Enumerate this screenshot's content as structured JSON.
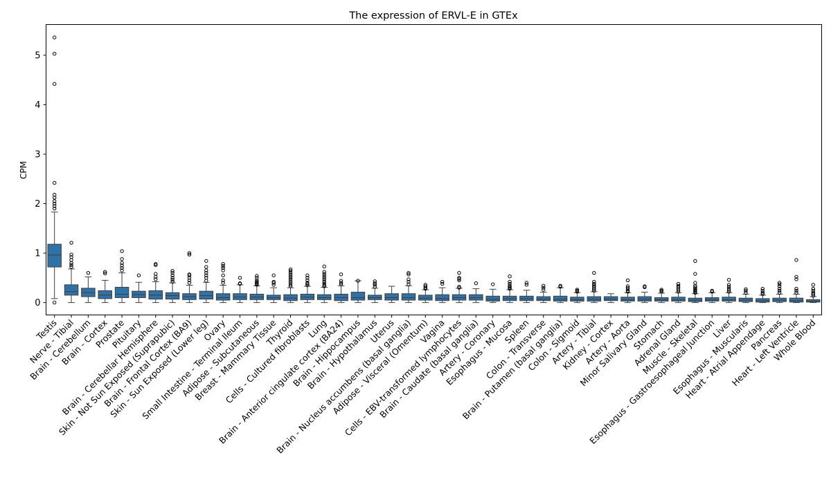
{
  "chart_data": {
    "type": "box",
    "title": "The expression of ERVL-E in GTEx",
    "xlabel": "",
    "ylabel": "CPM",
    "ylim": [
      -0.25,
      5.62
    ],
    "yticks": [
      0,
      1,
      2,
      3,
      4,
      5
    ],
    "grid": false,
    "legend": "none",
    "box_color": "#2E72A8",
    "categories": [
      "Testis",
      "Nerve - Tibial",
      "Brain - Cerebellum",
      "Brain - Cortex",
      "Prostate",
      "Pituitary",
      "Brain - Cerebellar Hemisphere",
      "Skin - Not Sun Exposed (Suprapubic)",
      "Brain - Frontal Cortex (BA9)",
      "Skin - Sun Exposed (Lower leg)",
      "Ovary",
      "Small Intestine - Terminal Ileum",
      "Adipose - Subcutaneous",
      "Breast - Mammary Tissue",
      "Thyroid",
      "Cells - Cultured fibroblasts",
      "Lung",
      "Brain - Anterior cingulate cortex (BA24)",
      "Brain - Hippocampus",
      "Brain - Hypothalamus",
      "Uterus",
      "Brain - Nucleus accumbens (basal ganglia)",
      "Adipose - Visceral (Omentum)",
      "Vagina",
      "Cells - EBV-transformed lymphocytes",
      "Brain - Caudate (basal ganglia)",
      "Artery - Coronary",
      "Esophagus - Mucosa",
      "Spleen",
      "Colon - Transverse",
      "Brain - Putamen (basal ganglia)",
      "Colon - Sigmoid",
      "Artery - Tibial",
      "Kidney - Cortex",
      "Artery - Aorta",
      "Minor Salivary Gland",
      "Stomach",
      "Adrenal Gland",
      "Muscle - Skeletal",
      "Esophagus - Gastroesophageal Junction",
      "Liver",
      "Esophagus - Muscularis",
      "Heart - Atrial Appendage",
      "Pancreas",
      "Heart - Left Ventricle",
      "Whole Blood"
    ],
    "boxes": [
      {
        "min": 0.08,
        "q1": 0.72,
        "median": 0.96,
        "q3": 1.18,
        "max": 1.83,
        "outliers": [
          0.0,
          1.9,
          1.95,
          2.0,
          2.05,
          2.12,
          2.18,
          2.42,
          4.42,
          5.03,
          5.36
        ]
      },
      {
        "min": 0.0,
        "q1": 0.15,
        "median": 0.22,
        "q3": 0.36,
        "max": 0.68,
        "outliers": [
          0.72,
          0.76,
          0.8,
          0.86,
          0.92,
          0.97,
          1.21
        ]
      },
      {
        "min": 0.0,
        "q1": 0.12,
        "median": 0.2,
        "q3": 0.29,
        "max": 0.52,
        "outliers": [
          0.6
        ]
      },
      {
        "min": 0.0,
        "q1": 0.08,
        "median": 0.15,
        "q3": 0.24,
        "max": 0.45,
        "outliers": [
          0.59,
          0.62
        ]
      },
      {
        "min": 0.0,
        "q1": 0.1,
        "median": 0.17,
        "q3": 0.31,
        "max": 0.6,
        "outliers": [
          0.65,
          0.7,
          0.75,
          0.8,
          0.88,
          1.04
        ]
      },
      {
        "min": 0.0,
        "q1": 0.1,
        "median": 0.16,
        "q3": 0.23,
        "max": 0.41,
        "outliers": [
          0.55
        ]
      },
      {
        "min": 0.0,
        "q1": 0.07,
        "median": 0.15,
        "q3": 0.24,
        "max": 0.42,
        "outliers": [
          0.47,
          0.52,
          0.58,
          0.76,
          0.78
        ]
      },
      {
        "min": 0.0,
        "q1": 0.07,
        "median": 0.14,
        "q3": 0.2,
        "max": 0.4,
        "outliers": [
          0.42,
          0.46,
          0.5,
          0.55,
          0.6,
          0.64
        ]
      },
      {
        "min": 0.0,
        "q1": 0.06,
        "median": 0.12,
        "q3": 0.18,
        "max": 0.35,
        "outliers": [
          0.4,
          0.45,
          0.5,
          0.55,
          0.57,
          0.97,
          1.0
        ]
      },
      {
        "min": 0.0,
        "q1": 0.07,
        "median": 0.14,
        "q3": 0.23,
        "max": 0.41,
        "outliers": [
          0.44,
          0.5,
          0.55,
          0.6,
          0.65,
          0.72,
          0.84
        ]
      },
      {
        "min": 0.0,
        "q1": 0.05,
        "median": 0.1,
        "q3": 0.18,
        "max": 0.35,
        "outliers": [
          0.4,
          0.45,
          0.55,
          0.65,
          0.7,
          0.74,
          0.78
        ]
      },
      {
        "min": 0.0,
        "q1": 0.06,
        "median": 0.11,
        "q3": 0.18,
        "max": 0.36,
        "outliers": [
          0.38,
          0.39,
          0.5
        ]
      },
      {
        "min": 0.0,
        "q1": 0.06,
        "median": 0.11,
        "q3": 0.17,
        "max": 0.34,
        "outliers": [
          0.36,
          0.38,
          0.4,
          0.42,
          0.45,
          0.5,
          0.54
        ]
      },
      {
        "min": 0.0,
        "q1": 0.06,
        "median": 0.1,
        "q3": 0.15,
        "max": 0.3,
        "outliers": [
          0.36,
          0.4,
          0.42,
          0.55
        ]
      },
      {
        "min": 0.0,
        "q1": 0.04,
        "median": 0.09,
        "q3": 0.16,
        "max": 0.3,
        "outliers": [
          0.33,
          0.36,
          0.4,
          0.44,
          0.48,
          0.52,
          0.56,
          0.6,
          0.64,
          0.67
        ]
      },
      {
        "min": 0.0,
        "q1": 0.06,
        "median": 0.11,
        "q3": 0.17,
        "max": 0.33,
        "outliers": [
          0.35,
          0.38,
          0.4,
          0.45,
          0.5,
          0.55
        ]
      },
      {
        "min": 0.0,
        "q1": 0.06,
        "median": 0.1,
        "q3": 0.16,
        "max": 0.31,
        "outliers": [
          0.33,
          0.35,
          0.38,
          0.42,
          0.46,
          0.5,
          0.54,
          0.58,
          0.62,
          0.73
        ]
      },
      {
        "min": 0.0,
        "q1": 0.04,
        "median": 0.1,
        "q3": 0.17,
        "max": 0.34,
        "outliers": [
          0.37,
          0.4,
          0.44,
          0.57
        ]
      },
      {
        "min": 0.0,
        "q1": 0.05,
        "median": 0.1,
        "q3": 0.21,
        "max": 0.44,
        "outliers": [
          0.44
        ]
      },
      {
        "min": 0.0,
        "q1": 0.06,
        "median": 0.1,
        "q3": 0.15,
        "max": 0.29,
        "outliers": [
          0.32,
          0.36,
          0.39,
          0.43
        ]
      },
      {
        "min": 0.0,
        "q1": 0.05,
        "median": 0.1,
        "q3": 0.18,
        "max": 0.33,
        "outliers": []
      },
      {
        "min": 0.0,
        "q1": 0.05,
        "median": 0.1,
        "q3": 0.18,
        "max": 0.34,
        "outliers": [
          0.37,
          0.42,
          0.47,
          0.57,
          0.6
        ]
      },
      {
        "min": 0.0,
        "q1": 0.05,
        "median": 0.09,
        "q3": 0.15,
        "max": 0.26,
        "outliers": [
          0.28,
          0.3,
          0.33,
          0.36
        ]
      },
      {
        "min": 0.0,
        "q1": 0.04,
        "median": 0.08,
        "q3": 0.16,
        "max": 0.3,
        "outliers": [
          0.38,
          0.42
        ]
      },
      {
        "min": 0.0,
        "q1": 0.05,
        "median": 0.1,
        "q3": 0.16,
        "max": 0.29,
        "outliers": [
          0.3,
          0.32,
          0.45,
          0.48,
          0.5,
          0.6
        ]
      },
      {
        "min": 0.0,
        "q1": 0.05,
        "median": 0.1,
        "q3": 0.16,
        "max": 0.28,
        "outliers": [
          0.39
        ]
      },
      {
        "min": 0.0,
        "q1": 0.03,
        "median": 0.07,
        "q3": 0.13,
        "max": 0.27,
        "outliers": [
          0.37
        ]
      },
      {
        "min": 0.0,
        "q1": 0.04,
        "median": 0.08,
        "q3": 0.13,
        "max": 0.26,
        "outliers": [
          0.28,
          0.3,
          0.32,
          0.34,
          0.38,
          0.42,
          0.53
        ]
      },
      {
        "min": 0.0,
        "q1": 0.04,
        "median": 0.08,
        "q3": 0.13,
        "max": 0.25,
        "outliers": [
          0.36,
          0.4
        ]
      },
      {
        "min": 0.0,
        "q1": 0.04,
        "median": 0.07,
        "q3": 0.12,
        "max": 0.21,
        "outliers": [
          0.26,
          0.3,
          0.34
        ]
      },
      {
        "min": 0.0,
        "q1": 0.03,
        "median": 0.07,
        "q3": 0.13,
        "max": 0.3,
        "outliers": [
          0.32,
          0.34
        ]
      },
      {
        "min": 0.0,
        "q1": 0.03,
        "median": 0.06,
        "q3": 0.11,
        "max": 0.2,
        "outliers": [
          0.22,
          0.24,
          0.26
        ]
      },
      {
        "min": 0.0,
        "q1": 0.03,
        "median": 0.07,
        "q3": 0.12,
        "max": 0.22,
        "outliers": [
          0.24,
          0.27,
          0.3,
          0.33,
          0.36,
          0.38,
          0.42,
          0.6
        ]
      },
      {
        "min": 0.0,
        "q1": 0.04,
        "median": 0.07,
        "q3": 0.12,
        "max": 0.18,
        "outliers": []
      },
      {
        "min": 0.0,
        "q1": 0.03,
        "median": 0.06,
        "q3": 0.11,
        "max": 0.2,
        "outliers": [
          0.22,
          0.24,
          0.27,
          0.3,
          0.33,
          0.45
        ]
      },
      {
        "min": 0.0,
        "q1": 0.03,
        "median": 0.07,
        "q3": 0.12,
        "max": 0.21,
        "outliers": [
          0.31,
          0.33
        ]
      },
      {
        "min": 0.0,
        "q1": 0.03,
        "median": 0.06,
        "q3": 0.1,
        "max": 0.19,
        "outliers": [
          0.22,
          0.24,
          0.26
        ]
      },
      {
        "min": 0.0,
        "q1": 0.03,
        "median": 0.06,
        "q3": 0.11,
        "max": 0.2,
        "outliers": [
          0.22,
          0.25,
          0.28,
          0.31,
          0.34,
          0.38
        ]
      },
      {
        "min": 0.0,
        "q1": 0.02,
        "median": 0.05,
        "q3": 0.09,
        "max": 0.18,
        "outliers": [
          0.2,
          0.22,
          0.24,
          0.26,
          0.28,
          0.31,
          0.34,
          0.4,
          0.58,
          0.84
        ]
      },
      {
        "min": 0.0,
        "q1": 0.03,
        "median": 0.06,
        "q3": 0.1,
        "max": 0.2,
        "outliers": [
          0.22,
          0.24
        ]
      },
      {
        "min": 0.0,
        "q1": 0.03,
        "median": 0.06,
        "q3": 0.11,
        "max": 0.2,
        "outliers": [
          0.22,
          0.25,
          0.28,
          0.32,
          0.36,
          0.46
        ]
      },
      {
        "min": 0.0,
        "q1": 0.02,
        "median": 0.05,
        "q3": 0.09,
        "max": 0.17,
        "outliers": [
          0.2,
          0.24,
          0.27
        ]
      },
      {
        "min": 0.0,
        "q1": 0.01,
        "median": 0.04,
        "q3": 0.08,
        "max": 0.15,
        "outliers": [
          0.17,
          0.2,
          0.24,
          0.28
        ]
      },
      {
        "min": 0.0,
        "q1": 0.02,
        "median": 0.05,
        "q3": 0.09,
        "max": 0.17,
        "outliers": [
          0.2,
          0.24,
          0.28,
          0.33,
          0.37,
          0.4
        ]
      },
      {
        "min": 0.0,
        "q1": 0.01,
        "median": 0.04,
        "q3": 0.09,
        "max": 0.17,
        "outliers": [
          0.2,
          0.24,
          0.28,
          0.47,
          0.52,
          0.86
        ]
      },
      {
        "min": 0.0,
        "q1": 0.01,
        "median": 0.03,
        "q3": 0.06,
        "max": 0.12,
        "outliers": [
          0.14,
          0.17,
          0.2,
          0.24,
          0.28,
          0.36
        ]
      }
    ]
  }
}
